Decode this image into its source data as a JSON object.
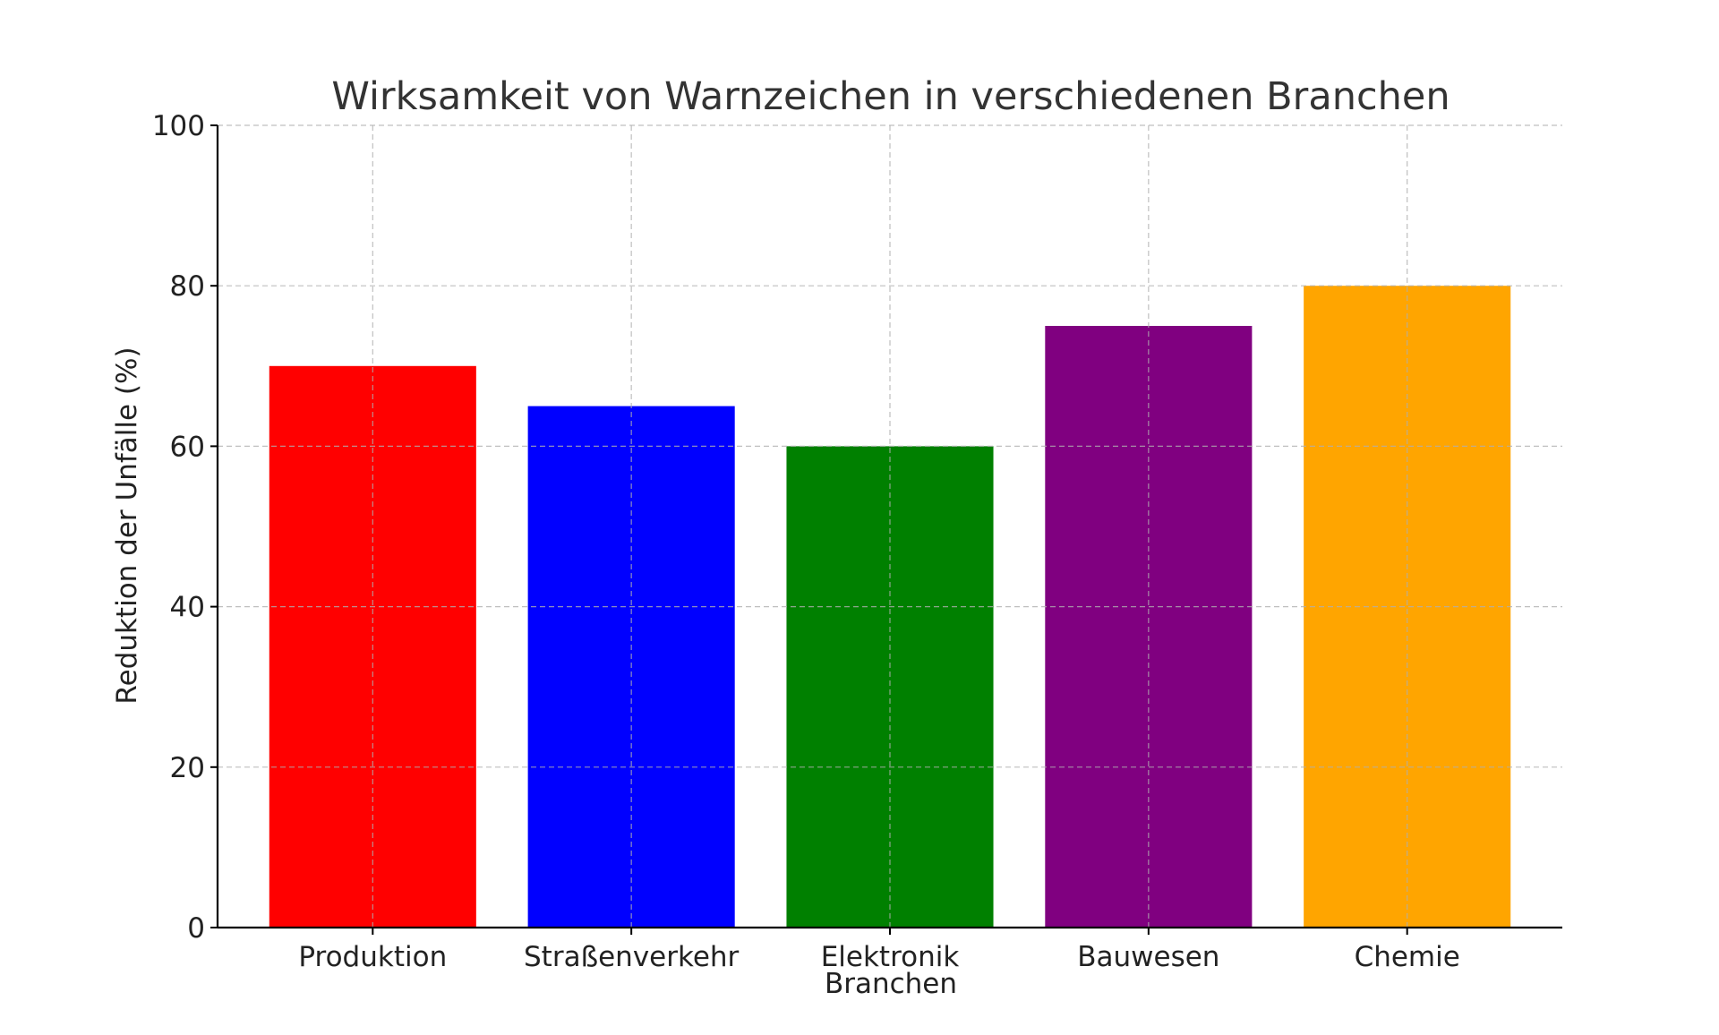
{
  "chart_data": {
    "type": "bar",
    "title": "Wirksamkeit von Warnzeichen in verschiedenen Branchen",
    "xlabel": "Branchen",
    "ylabel": "Reduktion der Unfälle (%)",
    "categories": [
      "Produktion",
      "Straßenverkehr",
      "Elektronik",
      "Bauwesen",
      "Chemie"
    ],
    "values": [
      70,
      65,
      60,
      75,
      80
    ],
    "colors": [
      "#ff0000",
      "#0000ff",
      "#008000",
      "#800080",
      "#ffa500"
    ],
    "ylim": [
      0,
      100
    ],
    "yticks": [
      0,
      20,
      40,
      60,
      80,
      100
    ],
    "grid": true,
    "legend": "none"
  }
}
